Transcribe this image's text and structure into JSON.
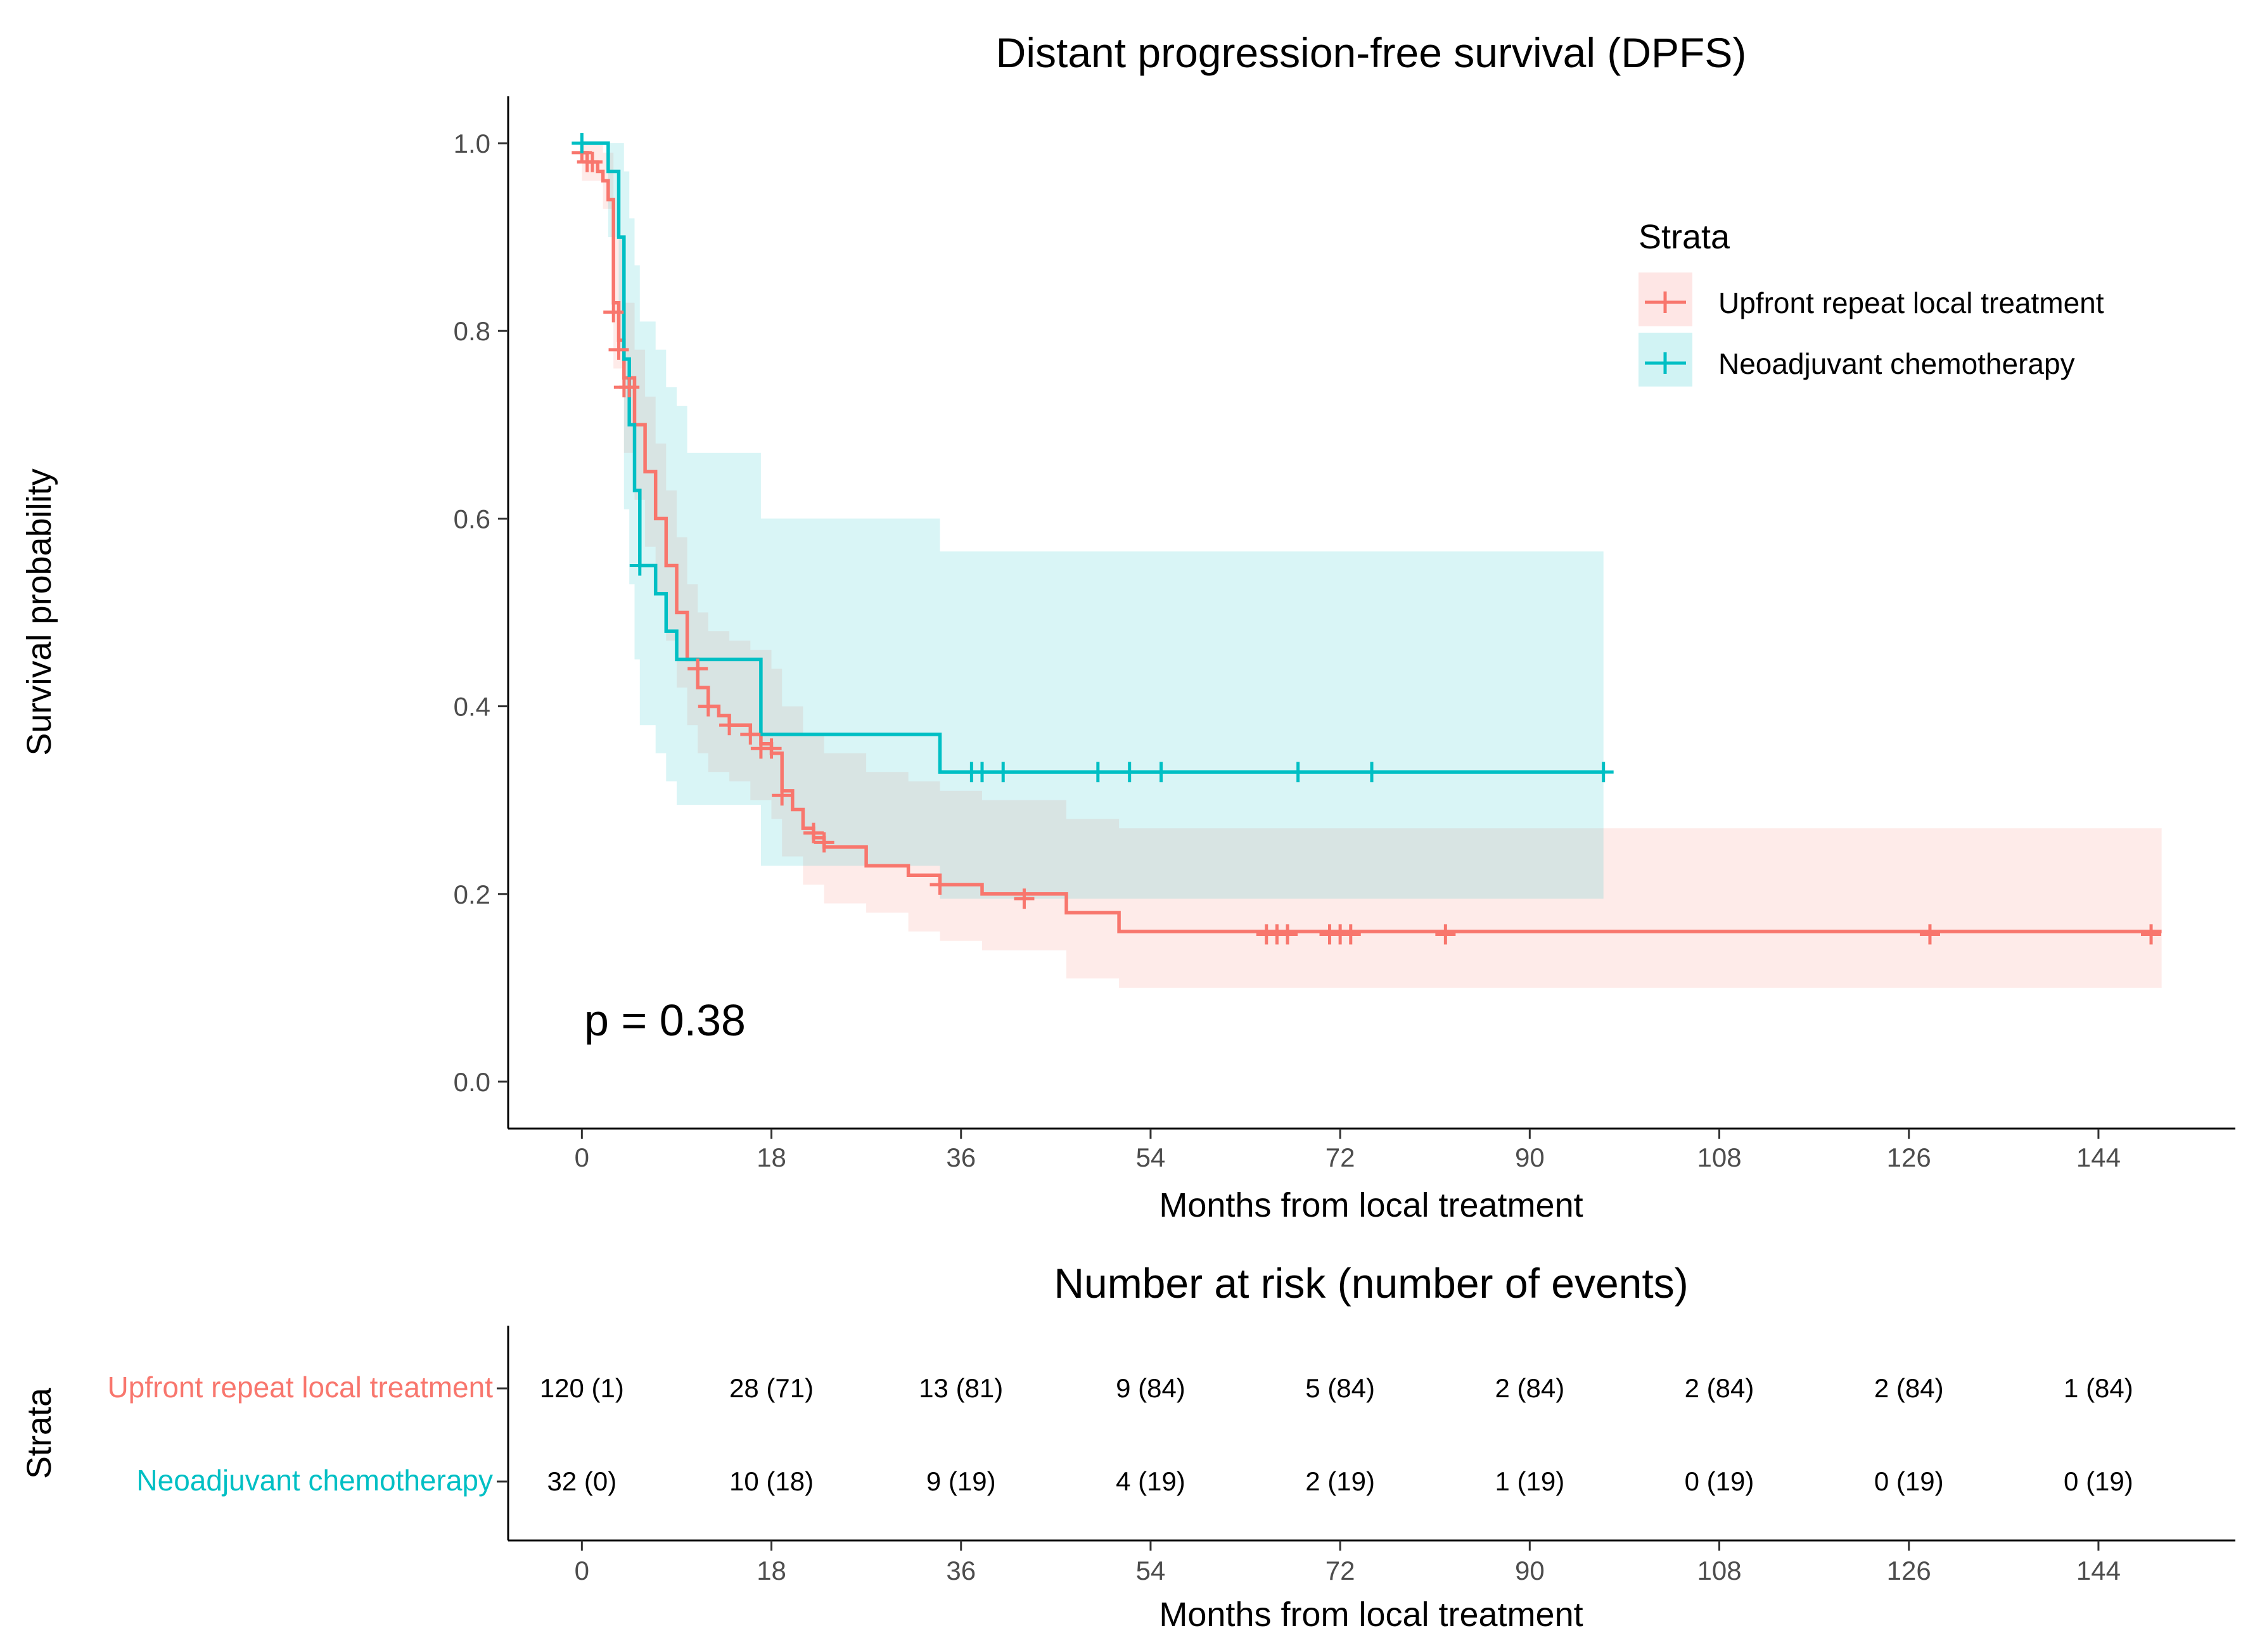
{
  "chart_data": {
    "type": "line",
    "subtype": "kaplan-meier",
    "title": "Distant progression-free survival (DPFS)",
    "xlabel": "Months from local treatment",
    "ylabel": "Survival probability",
    "xlim": [
      -7,
      157
    ],
    "ylim": [
      -0.05,
      1.05
    ],
    "x_ticks": [
      0,
      18,
      36,
      54,
      72,
      90,
      108,
      126,
      144
    ],
    "y_ticks": [
      0.0,
      0.2,
      0.4,
      0.6,
      0.8,
      1.0
    ],
    "y_tick_labels": [
      "0.0",
      "0.2",
      "0.4",
      "0.6",
      "0.8",
      "1.0"
    ],
    "p_value_text": "p = 0.38",
    "legend": {
      "title": "Strata",
      "position": "top-right",
      "items": [
        "Upfront repeat local treatment",
        "Neoadjuvant chemotherapy"
      ]
    },
    "series": [
      {
        "name": "Upfront repeat local treatment",
        "color": "#F8766D",
        "fill": "#F8766D",
        "steps": [
          [
            0,
            0.99
          ],
          [
            0.5,
            0.98
          ],
          [
            1.5,
            0.97
          ],
          [
            2,
            0.96
          ],
          [
            2.5,
            0.94
          ],
          [
            3,
            0.83
          ],
          [
            3.5,
            0.79
          ],
          [
            4,
            0.75
          ],
          [
            5,
            0.7
          ],
          [
            6,
            0.65
          ],
          [
            7,
            0.6
          ],
          [
            8,
            0.55
          ],
          [
            9,
            0.5
          ],
          [
            10,
            0.45
          ],
          [
            11,
            0.42
          ],
          [
            12,
            0.4
          ],
          [
            13,
            0.39
          ],
          [
            14,
            0.38
          ],
          [
            16,
            0.37
          ],
          [
            17,
            0.36
          ],
          [
            18,
            0.35
          ],
          [
            19,
            0.31
          ],
          [
            20,
            0.29
          ],
          [
            21,
            0.27
          ],
          [
            22,
            0.26
          ],
          [
            23,
            0.25
          ],
          [
            27,
            0.23
          ],
          [
            31,
            0.22
          ],
          [
            34,
            0.21
          ],
          [
            38,
            0.2
          ],
          [
            46,
            0.18
          ],
          [
            51,
            0.16
          ],
          [
            150,
            0.16
          ]
        ],
        "ci_upper": [
          [
            0,
            1.0
          ],
          [
            2,
            0.99
          ],
          [
            3,
            0.9
          ],
          [
            4,
            0.83
          ],
          [
            5,
            0.78
          ],
          [
            6,
            0.73
          ],
          [
            7,
            0.68
          ],
          [
            8,
            0.63
          ],
          [
            9,
            0.58
          ],
          [
            10,
            0.53
          ],
          [
            11,
            0.5
          ],
          [
            12,
            0.48
          ],
          [
            14,
            0.47
          ],
          [
            16,
            0.46
          ],
          [
            18,
            0.44
          ],
          [
            19,
            0.4
          ],
          [
            21,
            0.37
          ],
          [
            23,
            0.35
          ],
          [
            27,
            0.33
          ],
          [
            31,
            0.32
          ],
          [
            34,
            0.31
          ],
          [
            38,
            0.3
          ],
          [
            46,
            0.28
          ],
          [
            51,
            0.27
          ],
          [
            150,
            0.27
          ]
        ],
        "ci_lower": [
          [
            0,
            0.96
          ],
          [
            2,
            0.93
          ],
          [
            3,
            0.76
          ],
          [
            4,
            0.67
          ],
          [
            5,
            0.62
          ],
          [
            6,
            0.57
          ],
          [
            7,
            0.52
          ],
          [
            8,
            0.47
          ],
          [
            9,
            0.42
          ],
          [
            10,
            0.38
          ],
          [
            11,
            0.35
          ],
          [
            12,
            0.33
          ],
          [
            14,
            0.32
          ],
          [
            16,
            0.3
          ],
          [
            18,
            0.28
          ],
          [
            19,
            0.24
          ],
          [
            21,
            0.21
          ],
          [
            23,
            0.19
          ],
          [
            27,
            0.18
          ],
          [
            31,
            0.16
          ],
          [
            34,
            0.15
          ],
          [
            38,
            0.14
          ],
          [
            46,
            0.11
          ],
          [
            51,
            0.1
          ],
          [
            150,
            0.1
          ]
        ],
        "censored": [
          [
            0,
            0.99
          ],
          [
            0.5,
            0.98
          ],
          [
            1,
            0.98
          ],
          [
            3,
            0.82
          ],
          [
            3.5,
            0.78
          ],
          [
            4,
            0.74
          ],
          [
            4.5,
            0.74
          ],
          [
            11,
            0.44
          ],
          [
            12,
            0.4
          ],
          [
            14,
            0.38
          ],
          [
            16,
            0.37
          ],
          [
            17,
            0.355
          ],
          [
            18,
            0.355
          ],
          [
            19,
            0.305
          ],
          [
            22,
            0.265
          ],
          [
            23,
            0.255
          ],
          [
            34,
            0.21
          ],
          [
            42,
            0.195
          ],
          [
            65,
            0.157
          ],
          [
            66,
            0.157
          ],
          [
            67,
            0.157
          ],
          [
            71,
            0.157
          ],
          [
            72,
            0.157
          ],
          [
            73,
            0.157
          ],
          [
            82,
            0.157
          ],
          [
            128,
            0.157
          ],
          [
            149,
            0.157
          ]
        ]
      },
      {
        "name": "Neoadjuvant chemotherapy",
        "color": "#00BFC4",
        "fill": "#00BFC4",
        "steps": [
          [
            0,
            1.0
          ],
          [
            2.5,
            0.97
          ],
          [
            3.5,
            0.9
          ],
          [
            4,
            0.77
          ],
          [
            4.5,
            0.7
          ],
          [
            5,
            0.63
          ],
          [
            5.5,
            0.55
          ],
          [
            7,
            0.52
          ],
          [
            8,
            0.48
          ],
          [
            9,
            0.45
          ],
          [
            17,
            0.37
          ],
          [
            34,
            0.33
          ],
          [
            97,
            0.33
          ]
        ],
        "ci_upper": [
          [
            0,
            1.0
          ],
          [
            2.5,
            1.0
          ],
          [
            3.5,
            1.0
          ],
          [
            4,
            0.97
          ],
          [
            4.5,
            0.92
          ],
          [
            5,
            0.87
          ],
          [
            5.5,
            0.81
          ],
          [
            7,
            0.78
          ],
          [
            8,
            0.74
          ],
          [
            9,
            0.72
          ],
          [
            10,
            0.67
          ],
          [
            17,
            0.6
          ],
          [
            34,
            0.565
          ],
          [
            97,
            0.565
          ]
        ],
        "ci_lower": [
          [
            0,
            1.0
          ],
          [
            2.5,
            0.9
          ],
          [
            3.5,
            0.78
          ],
          [
            4,
            0.61
          ],
          [
            4.5,
            0.53
          ],
          [
            5,
            0.45
          ],
          [
            5.5,
            0.38
          ],
          [
            7,
            0.35
          ],
          [
            8,
            0.32
          ],
          [
            9,
            0.295
          ],
          [
            17,
            0.23
          ],
          [
            34,
            0.195
          ],
          [
            97,
            0.195
          ]
        ],
        "censored": [
          [
            0,
            1.0
          ],
          [
            5.5,
            0.55
          ],
          [
            37,
            0.33
          ],
          [
            38,
            0.33
          ],
          [
            40,
            0.33
          ],
          [
            49,
            0.33
          ],
          [
            52,
            0.33
          ],
          [
            55,
            0.33
          ],
          [
            68,
            0.33
          ],
          [
            75,
            0.33
          ],
          [
            97,
            0.33
          ]
        ]
      }
    ]
  },
  "risk_table": {
    "title": "Number at risk (number of events)",
    "xlabel": "Months from local treatment",
    "ylabel": "Strata",
    "times": [
      0,
      18,
      36,
      54,
      72,
      90,
      108,
      126,
      144
    ],
    "rows": [
      {
        "label": "Upfront repeat local treatment",
        "color": "#F8766D",
        "values": [
          "120 (1)",
          "28 (71)",
          "13 (81)",
          "9 (84)",
          "5 (84)",
          "2 (84)",
          "2 (84)",
          "2 (84)",
          "1 (84)"
        ]
      },
      {
        "label": "Neoadjuvant chemotherapy",
        "color": "#00BFC4",
        "values": [
          "32 (0)",
          "10 (18)",
          "9 (19)",
          "4 (19)",
          "2 (19)",
          "1 (19)",
          "0 (19)",
          "0 (19)",
          "0 (19)"
        ]
      }
    ]
  }
}
